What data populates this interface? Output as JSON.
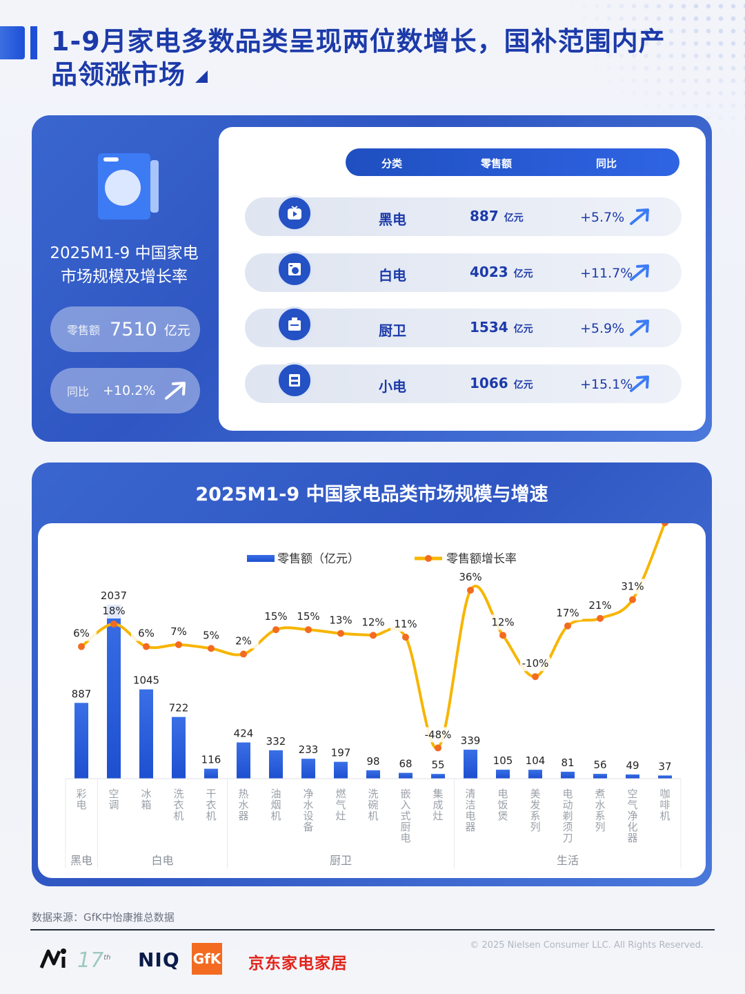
{
  "header": {
    "title_line1": "1-9月家电多数品类呈现两位数增长，国补范围内产",
    "title_line2": "品领涨市场"
  },
  "summary": {
    "title_line1": "2025M1-9 中国家电",
    "title_line2": "市场规模及增长率",
    "retail_label": "零售额",
    "retail_value": "7510",
    "retail_unit": "亿元",
    "yoy_label": "同比",
    "yoy_value": "+10.2%"
  },
  "table": {
    "headers": [
      "分类",
      "零售额",
      "同比"
    ],
    "unit": "亿元",
    "rows": [
      {
        "category": "黑电",
        "value": "887",
        "yoy": "+5.7%",
        "icon": "tv-icon"
      },
      {
        "category": "白电",
        "value": "4023",
        "yoy": "+11.7%",
        "icon": "washer-icon"
      },
      {
        "category": "厨卫",
        "value": "1534",
        "yoy": "+5.9%",
        "icon": "stove-icon"
      },
      {
        "category": "小电",
        "value": "1066",
        "yoy": "+15.1%",
        "icon": "appliance-icon"
      }
    ]
  },
  "chart_data": {
    "type": "bar",
    "title": "2025M1-9 中国家电品类市场规模与增速",
    "categories": [
      "彩电",
      "空调",
      "冰箱",
      "洗衣机",
      "干衣机",
      "热水器",
      "油烟机",
      "净水设备",
      "燃气灶",
      "洗碗机",
      "嵌入式厨电",
      "集成灶",
      "清洁电器",
      "电饭煲",
      "美发系列",
      "电动剃须刀",
      "煮水系列",
      "空气净化器",
      "咖啡机"
    ],
    "series": [
      {
        "name": "零售额（亿元）",
        "type": "bar",
        "values": [
          887,
          2037,
          1045,
          722,
          116,
          424,
          332,
          233,
          197,
          98,
          68,
          55,
          339,
          105,
          104,
          81,
          56,
          49,
          37
        ]
      },
      {
        "name": "零售额增长率",
        "type": "line",
        "values": [
          "6%",
          "18%",
          "6%",
          "7%",
          "5%",
          "2%",
          "15%",
          "15%",
          "13%",
          "12%",
          "11%",
          "-48%",
          "36%",
          "12%",
          "-10%",
          "17%",
          "21%",
          "31%",
          "72%"
        ]
      }
    ],
    "groups": [
      {
        "label": "黑电",
        "start": 0,
        "end": 0
      },
      {
        "label": "白电",
        "start": 1,
        "end": 4
      },
      {
        "label": "厨卫",
        "start": 5,
        "end": 11
      },
      {
        "label": "生活",
        "start": 12,
        "end": 18
      }
    ],
    "bar_color": "#2a5bd7",
    "line_color": "#f7b500",
    "dot_color": "#f26b21"
  },
  "footer": {
    "source": "数据来源：GfK中怡康推总数据",
    "copyright": "© 2025 Nielsen Consumer LLC. All Rights Reserved.",
    "logo_niq": "NIQ",
    "logo_gfk": "GfK",
    "logo_jd": "京东家电家居",
    "logo_17": "17",
    "logo_17_sup": "th"
  }
}
